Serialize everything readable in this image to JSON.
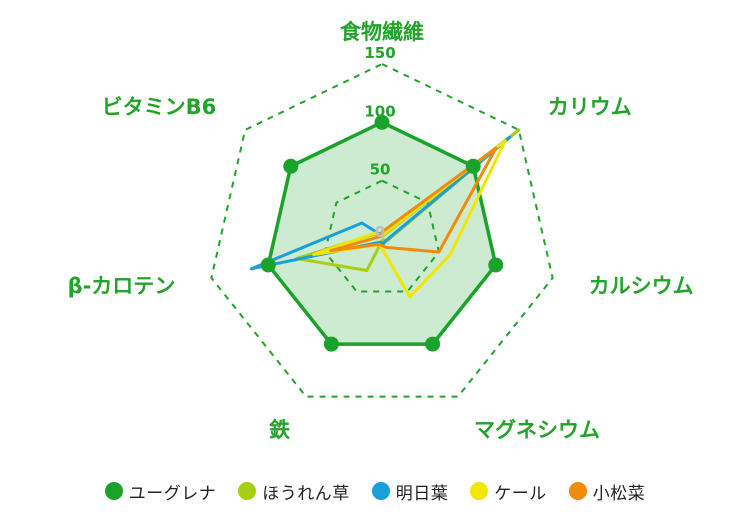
{
  "chart_data": {
    "type": "radar",
    "axes": [
      "食物繊維",
      "カリウム",
      "カルシウム",
      "マグネシウム",
      "鉄",
      "β-カロテン",
      "ビタミンB6"
    ],
    "ticks": [
      "0",
      "50",
      "100",
      "150"
    ],
    "rlim": [
      0,
      150
    ],
    "grid": "dashed",
    "legend_position": "bottom",
    "series": [
      {
        "name": "ユーグレナ",
        "color": "#1aa32a",
        "values": [
          100,
          100,
          100,
          100,
          100,
          100,
          100
        ],
        "filled": true,
        "markers": true
      },
      {
        "name": "ほうれん草",
        "color": "#a6cf14",
        "values": [
          2,
          150,
          5,
          1,
          30,
          75,
          7
        ]
      },
      {
        "name": "明日葉",
        "color": "#1a9fdb",
        "values": [
          3,
          140,
          4,
          4,
          3,
          115,
          22
        ]
      },
      {
        "name": "ケール",
        "color": "#f2e600",
        "values": [
          3,
          135,
          60,
          55,
          5,
          60,
          8
        ]
      },
      {
        "name": "小松菜",
        "color": "#f28a0a",
        "values": [
          6,
          125,
          50,
          8,
          5,
          45,
          3
        ]
      }
    ]
  }
}
